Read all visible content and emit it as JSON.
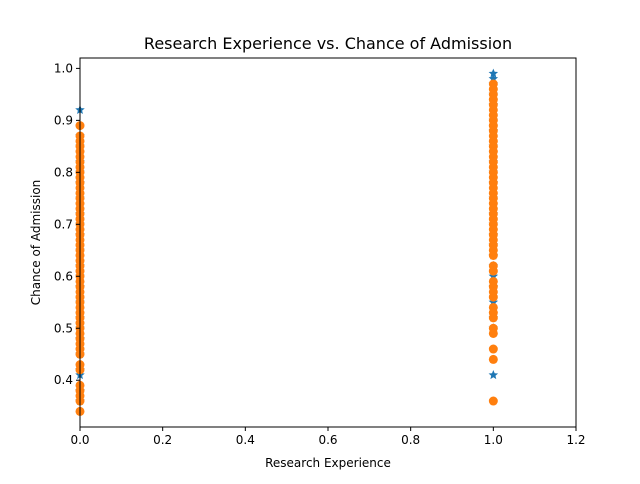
{
  "chart_data": {
    "type": "scatter",
    "title": "Research Experience vs. Chance of Admission",
    "xlabel": "Research Experience",
    "ylabel": "Chance of Admission",
    "xlim": [
      0.0,
      1.2
    ],
    "ylim": [
      0.31,
      1.02
    ],
    "xticks": [
      0.0,
      0.2,
      0.4,
      0.6,
      0.8,
      1.0,
      1.2
    ],
    "xtick_labels": [
      "0.0",
      "0.2",
      "0.4",
      "0.6",
      "0.8",
      "1.0",
      "1.2"
    ],
    "yticks": [
      0.4,
      0.5,
      0.6,
      0.7,
      0.8,
      0.9,
      1.0
    ],
    "ytick_labels": [
      "0.4",
      "0.5",
      "0.6",
      "0.7",
      "0.8",
      "0.9",
      "1.0"
    ],
    "grid": false,
    "legend": "none",
    "series": [
      {
        "marker": "star",
        "color": "#1f77b4",
        "points": [
          [
            0,
            0.92
          ],
          [
            0,
            0.87
          ],
          [
            0,
            0.85
          ],
          [
            0,
            0.82
          ],
          [
            0,
            0.8
          ],
          [
            0,
            0.78
          ],
          [
            0,
            0.75
          ],
          [
            0,
            0.72
          ],
          [
            0,
            0.7
          ],
          [
            0,
            0.68
          ],
          [
            0,
            0.65
          ],
          [
            0,
            0.62
          ],
          [
            0,
            0.6
          ],
          [
            0,
            0.58
          ],
          [
            0,
            0.55
          ],
          [
            0,
            0.52
          ],
          [
            0,
            0.5
          ],
          [
            0,
            0.48
          ],
          [
            0,
            0.45
          ],
          [
            0,
            0.42
          ],
          [
            0,
            0.41
          ],
          [
            0,
            0.38
          ],
          [
            0,
            0.36
          ],
          [
            1,
            0.99
          ],
          [
            1,
            0.98
          ],
          [
            1,
            0.97
          ],
          [
            1,
            0.95
          ],
          [
            1,
            0.93
          ],
          [
            1,
            0.9
          ],
          [
            1,
            0.88
          ],
          [
            1,
            0.85
          ],
          [
            1,
            0.82
          ],
          [
            1,
            0.8
          ],
          [
            1,
            0.78
          ],
          [
            1,
            0.75
          ],
          [
            1,
            0.72
          ],
          [
            1,
            0.7
          ],
          [
            1,
            0.68
          ],
          [
            1,
            0.66
          ],
          [
            1,
            0.64
          ],
          [
            1,
            0.62
          ],
          [
            1,
            0.6
          ],
          [
            1,
            0.58
          ],
          [
            1,
            0.55
          ],
          [
            1,
            0.52
          ],
          [
            1,
            0.5
          ],
          [
            1,
            0.41
          ]
        ]
      },
      {
        "marker": "circle",
        "color": "#ff7f0e",
        "points": [
          [
            0,
            0.89
          ],
          [
            0,
            0.87
          ],
          [
            0,
            0.86
          ],
          [
            0,
            0.85
          ],
          [
            0,
            0.84
          ],
          [
            0,
            0.83
          ],
          [
            0,
            0.82
          ],
          [
            0,
            0.81
          ],
          [
            0,
            0.8
          ],
          [
            0,
            0.79
          ],
          [
            0,
            0.78
          ],
          [
            0,
            0.77
          ],
          [
            0,
            0.76
          ],
          [
            0,
            0.75
          ],
          [
            0,
            0.74
          ],
          [
            0,
            0.73
          ],
          [
            0,
            0.72
          ],
          [
            0,
            0.71
          ],
          [
            0,
            0.7
          ],
          [
            0,
            0.69
          ],
          [
            0,
            0.68
          ],
          [
            0,
            0.67
          ],
          [
            0,
            0.66
          ],
          [
            0,
            0.65
          ],
          [
            0,
            0.64
          ],
          [
            0,
            0.63
          ],
          [
            0,
            0.62
          ],
          [
            0,
            0.61
          ],
          [
            0,
            0.6
          ],
          [
            0,
            0.59
          ],
          [
            0,
            0.58
          ],
          [
            0,
            0.57
          ],
          [
            0,
            0.56
          ],
          [
            0,
            0.55
          ],
          [
            0,
            0.54
          ],
          [
            0,
            0.53
          ],
          [
            0,
            0.52
          ],
          [
            0,
            0.51
          ],
          [
            0,
            0.5
          ],
          [
            0,
            0.49
          ],
          [
            0,
            0.48
          ],
          [
            0,
            0.47
          ],
          [
            0,
            0.46
          ],
          [
            0,
            0.45
          ],
          [
            0,
            0.43
          ],
          [
            0,
            0.42
          ],
          [
            0,
            0.39
          ],
          [
            0,
            0.38
          ],
          [
            0,
            0.37
          ],
          [
            0,
            0.36
          ],
          [
            0,
            0.34
          ],
          [
            1,
            0.97
          ],
          [
            1,
            0.96
          ],
          [
            1,
            0.95
          ],
          [
            1,
            0.94
          ],
          [
            1,
            0.93
          ],
          [
            1,
            0.92
          ],
          [
            1,
            0.91
          ],
          [
            1,
            0.9
          ],
          [
            1,
            0.89
          ],
          [
            1,
            0.88
          ],
          [
            1,
            0.87
          ],
          [
            1,
            0.86
          ],
          [
            1,
            0.85
          ],
          [
            1,
            0.84
          ],
          [
            1,
            0.83
          ],
          [
            1,
            0.82
          ],
          [
            1,
            0.81
          ],
          [
            1,
            0.8
          ],
          [
            1,
            0.79
          ],
          [
            1,
            0.78
          ],
          [
            1,
            0.77
          ],
          [
            1,
            0.76
          ],
          [
            1,
            0.75
          ],
          [
            1,
            0.74
          ],
          [
            1,
            0.73
          ],
          [
            1,
            0.72
          ],
          [
            1,
            0.71
          ],
          [
            1,
            0.7
          ],
          [
            1,
            0.69
          ],
          [
            1,
            0.68
          ],
          [
            1,
            0.67
          ],
          [
            1,
            0.66
          ],
          [
            1,
            0.65
          ],
          [
            1,
            0.64
          ],
          [
            1,
            0.62
          ],
          [
            1,
            0.61
          ],
          [
            1,
            0.59
          ],
          [
            1,
            0.58
          ],
          [
            1,
            0.57
          ],
          [
            1,
            0.56
          ],
          [
            1,
            0.54
          ],
          [
            1,
            0.53
          ],
          [
            1,
            0.52
          ],
          [
            1,
            0.5
          ],
          [
            1,
            0.49
          ],
          [
            1,
            0.46
          ],
          [
            1,
            0.44
          ],
          [
            1,
            0.36
          ]
        ]
      }
    ]
  }
}
